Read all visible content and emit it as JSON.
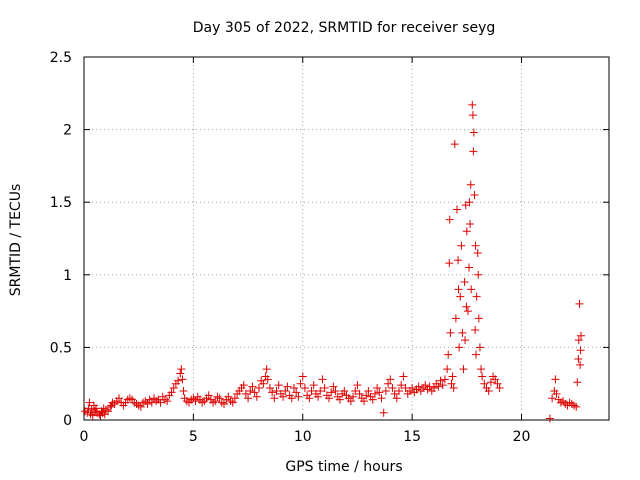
{
  "chart_data": {
    "type": "scatter",
    "title": "Day 305 of 2022, SRMTID for receiver seyg",
    "xlabel": "GPS time / hours",
    "ylabel": "SRMTID / TECUs",
    "xlim": [
      0,
      24
    ],
    "ylim": [
      0,
      2.5
    ],
    "x_ticks": [
      0,
      5,
      10,
      15,
      20
    ],
    "x_tick_labels": [
      "0",
      "5",
      "10",
      "15",
      "20"
    ],
    "y_ticks": [
      0,
      0.5,
      1,
      1.5,
      2,
      2.5
    ],
    "y_tick_labels": [
      "0",
      "0.5",
      "1",
      "1.5",
      "2",
      "2.5"
    ],
    "grid": true,
    "marker": "+",
    "color": "#dd0000",
    "series": [
      {
        "name": "seyg",
        "points": [
          [
            0.05,
            0.06
          ],
          [
            0.15,
            0.05
          ],
          [
            0.2,
            0.08
          ],
          [
            0.25,
            0.12
          ],
          [
            0.3,
            0.04
          ],
          [
            0.35,
            0.07
          ],
          [
            0.4,
            0.03
          ],
          [
            0.45,
            0.1
          ],
          [
            0.5,
            0.06
          ],
          [
            0.55,
            0.08
          ],
          [
            0.6,
            0.05
          ],
          [
            0.7,
            0.04
          ],
          [
            0.75,
            0.03
          ],
          [
            0.8,
            0.06
          ],
          [
            0.85,
            0.05
          ],
          [
            0.9,
            0.08
          ],
          [
            0.95,
            0.04
          ],
          [
            1.0,
            0.07
          ],
          [
            1.1,
            0.06
          ],
          [
            1.2,
            0.09
          ],
          [
            1.25,
            0.1
          ],
          [
            1.3,
            0.12
          ],
          [
            1.4,
            0.11
          ],
          [
            1.5,
            0.13
          ],
          [
            1.6,
            0.15
          ],
          [
            1.7,
            0.12
          ],
          [
            1.8,
            0.1
          ],
          [
            1.9,
            0.12
          ],
          [
            2.0,
            0.14
          ],
          [
            2.1,
            0.15
          ],
          [
            2.2,
            0.14
          ],
          [
            2.3,
            0.12
          ],
          [
            2.4,
            0.11
          ],
          [
            2.5,
            0.1
          ],
          [
            2.6,
            0.09
          ],
          [
            2.7,
            0.12
          ],
          [
            2.8,
            0.13
          ],
          [
            2.9,
            0.11
          ],
          [
            3.0,
            0.14
          ],
          [
            3.1,
            0.12
          ],
          [
            3.2,
            0.15
          ],
          [
            3.3,
            0.13
          ],
          [
            3.4,
            0.14
          ],
          [
            3.5,
            0.12
          ],
          [
            3.6,
            0.16
          ],
          [
            3.7,
            0.14
          ],
          [
            3.8,
            0.13
          ],
          [
            3.9,
            0.17
          ],
          [
            4.0,
            0.19
          ],
          [
            4.1,
            0.22
          ],
          [
            4.2,
            0.25
          ],
          [
            4.3,
            0.27
          ],
          [
            4.4,
            0.32
          ],
          [
            4.45,
            0.35
          ],
          [
            4.5,
            0.28
          ],
          [
            4.55,
            0.2
          ],
          [
            4.6,
            0.15
          ],
          [
            4.7,
            0.13
          ],
          [
            4.8,
            0.12
          ],
          [
            4.9,
            0.14
          ],
          [
            5.0,
            0.15
          ],
          [
            5.1,
            0.13
          ],
          [
            5.2,
            0.16
          ],
          [
            5.3,
            0.14
          ],
          [
            5.4,
            0.12
          ],
          [
            5.5,
            0.13
          ],
          [
            5.6,
            0.15
          ],
          [
            5.7,
            0.17
          ],
          [
            5.8,
            0.14
          ],
          [
            5.9,
            0.12
          ],
          [
            6.0,
            0.13
          ],
          [
            6.1,
            0.16
          ],
          [
            6.2,
            0.15
          ],
          [
            6.3,
            0.12
          ],
          [
            6.4,
            0.11
          ],
          [
            6.5,
            0.14
          ],
          [
            6.6,
            0.16
          ],
          [
            6.7,
            0.13
          ],
          [
            6.8,
            0.12
          ],
          [
            6.9,
            0.15
          ],
          [
            7.0,
            0.18
          ],
          [
            7.1,
            0.2
          ],
          [
            7.2,
            0.22
          ],
          [
            7.3,
            0.24
          ],
          [
            7.4,
            0.18
          ],
          [
            7.5,
            0.15
          ],
          [
            7.6,
            0.2
          ],
          [
            7.7,
            0.23
          ],
          [
            7.8,
            0.19
          ],
          [
            7.9,
            0.16
          ],
          [
            8.0,
            0.22
          ],
          [
            8.1,
            0.27
          ],
          [
            8.2,
            0.25
          ],
          [
            8.3,
            0.3
          ],
          [
            8.35,
            0.35
          ],
          [
            8.4,
            0.28
          ],
          [
            8.5,
            0.22
          ],
          [
            8.6,
            0.19
          ],
          [
            8.7,
            0.15
          ],
          [
            8.8,
            0.2
          ],
          [
            8.9,
            0.24
          ],
          [
            9.0,
            0.18
          ],
          [
            9.1,
            0.16
          ],
          [
            9.2,
            0.2
          ],
          [
            9.3,
            0.23
          ],
          [
            9.4,
            0.17
          ],
          [
            9.5,
            0.15
          ],
          [
            9.6,
            0.22
          ],
          [
            9.7,
            0.19
          ],
          [
            9.8,
            0.16
          ],
          [
            9.9,
            0.25
          ],
          [
            10.0,
            0.3
          ],
          [
            10.1,
            0.22
          ],
          [
            10.2,
            0.17
          ],
          [
            10.3,
            0.15
          ],
          [
            10.4,
            0.2
          ],
          [
            10.5,
            0.24
          ],
          [
            10.6,
            0.18
          ],
          [
            10.7,
            0.16
          ],
          [
            10.8,
            0.2
          ],
          [
            10.9,
            0.28
          ],
          [
            11.0,
            0.22
          ],
          [
            11.1,
            0.17
          ],
          [
            11.2,
            0.15
          ],
          [
            11.3,
            0.19
          ],
          [
            11.4,
            0.23
          ],
          [
            11.5,
            0.2
          ],
          [
            11.6,
            0.16
          ],
          [
            11.7,
            0.14
          ],
          [
            11.8,
            0.18
          ],
          [
            11.9,
            0.2
          ],
          [
            12.0,
            0.17
          ],
          [
            12.1,
            0.15
          ],
          [
            12.2,
            0.13
          ],
          [
            12.3,
            0.16
          ],
          [
            12.4,
            0.2
          ],
          [
            12.5,
            0.24
          ],
          [
            12.6,
            0.18
          ],
          [
            12.7,
            0.15
          ],
          [
            12.8,
            0.13
          ],
          [
            12.9,
            0.17
          ],
          [
            13.0,
            0.2
          ],
          [
            13.1,
            0.16
          ],
          [
            13.2,
            0.14
          ],
          [
            13.3,
            0.18
          ],
          [
            13.4,
            0.22
          ],
          [
            13.5,
            0.19
          ],
          [
            13.6,
            0.15
          ],
          [
            13.7,
            0.05
          ],
          [
            13.8,
            0.2
          ],
          [
            13.9,
            0.25
          ],
          [
            14.0,
            0.28
          ],
          [
            14.1,
            0.22
          ],
          [
            14.2,
            0.18
          ],
          [
            14.3,
            0.15
          ],
          [
            14.4,
            0.2
          ],
          [
            14.5,
            0.24
          ],
          [
            14.6,
            0.3
          ],
          [
            14.7,
            0.22
          ],
          [
            14.8,
            0.18
          ],
          [
            14.9,
            0.2
          ],
          [
            15.0,
            0.22
          ],
          [
            15.1,
            0.19
          ],
          [
            15.2,
            0.21
          ],
          [
            15.3,
            0.23
          ],
          [
            15.4,
            0.2
          ],
          [
            15.5,
            0.22
          ],
          [
            15.6,
            0.24
          ],
          [
            15.7,
            0.21
          ],
          [
            15.8,
            0.23
          ],
          [
            15.9,
            0.2
          ],
          [
            16.0,
            0.22
          ],
          [
            16.1,
            0.25
          ],
          [
            16.2,
            0.23
          ],
          [
            16.3,
            0.27
          ],
          [
            16.4,
            0.24
          ],
          [
            16.5,
            0.28
          ],
          [
            16.6,
            0.35
          ],
          [
            16.65,
            0.45
          ],
          [
            16.7,
            1.08
          ],
          [
            16.72,
            1.38
          ],
          [
            16.75,
            0.6
          ],
          [
            16.8,
            0.25
          ],
          [
            16.85,
            0.3
          ],
          [
            16.9,
            0.22
          ],
          [
            17.0,
            0.7
          ],
          [
            17.05,
            1.45
          ],
          [
            17.1,
            1.1
          ],
          [
            17.12,
            0.9
          ],
          [
            17.15,
            0.5
          ],
          [
            17.2,
            0.85
          ],
          [
            17.25,
            1.2
          ],
          [
            17.3,
            0.6
          ],
          [
            17.35,
            0.35
          ],
          [
            17.4,
            0.95
          ],
          [
            17.45,
            1.48
          ],
          [
            17.5,
            1.3
          ],
          [
            17.55,
            0.75
          ],
          [
            17.6,
            1.05
          ],
          [
            17.62,
            1.5
          ],
          [
            17.65,
            1.35
          ],
          [
            17.7,
            0.9
          ],
          [
            17.75,
            2.17
          ],
          [
            17.78,
            2.1
          ],
          [
            17.8,
            1.85
          ],
          [
            17.85,
            1.55
          ],
          [
            17.9,
            1.2
          ],
          [
            17.95,
            0.85
          ],
          [
            18.0,
            1.15
          ],
          [
            18.05,
            0.7
          ],
          [
            18.1,
            0.5
          ],
          [
            18.15,
            0.35
          ],
          [
            18.2,
            0.3
          ],
          [
            18.3,
            0.25
          ],
          [
            18.4,
            0.22
          ],
          [
            18.5,
            0.2
          ],
          [
            18.6,
            0.26
          ],
          [
            18.7,
            0.3
          ],
          [
            18.8,
            0.28
          ],
          [
            18.9,
            0.25
          ],
          [
            19.0,
            0.22
          ],
          [
            16.95,
            1.9
          ],
          [
            17.68,
            1.62
          ],
          [
            17.82,
            1.98
          ],
          [
            17.88,
            0.62
          ],
          [
            17.92,
            0.45
          ],
          [
            18.02,
            1.0
          ],
          [
            17.42,
            0.55
          ],
          [
            17.48,
            0.78
          ],
          [
            21.3,
            0.01
          ],
          [
            21.4,
            0.15
          ],
          [
            21.5,
            0.2
          ],
          [
            21.55,
            0.28
          ],
          [
            21.6,
            0.18
          ],
          [
            21.7,
            0.14
          ],
          [
            21.8,
            0.12
          ],
          [
            21.9,
            0.13
          ],
          [
            22.0,
            0.11
          ],
          [
            22.1,
            0.1
          ],
          [
            22.2,
            0.12
          ],
          [
            22.3,
            0.11
          ],
          [
            22.4,
            0.1
          ],
          [
            22.5,
            0.09
          ],
          [
            22.55,
            0.26
          ],
          [
            22.6,
            0.42
          ],
          [
            22.62,
            0.55
          ],
          [
            22.65,
            0.8
          ],
          [
            22.68,
            0.38
          ],
          [
            22.7,
            0.48
          ],
          [
            22.72,
            0.58
          ]
        ]
      }
    ]
  }
}
